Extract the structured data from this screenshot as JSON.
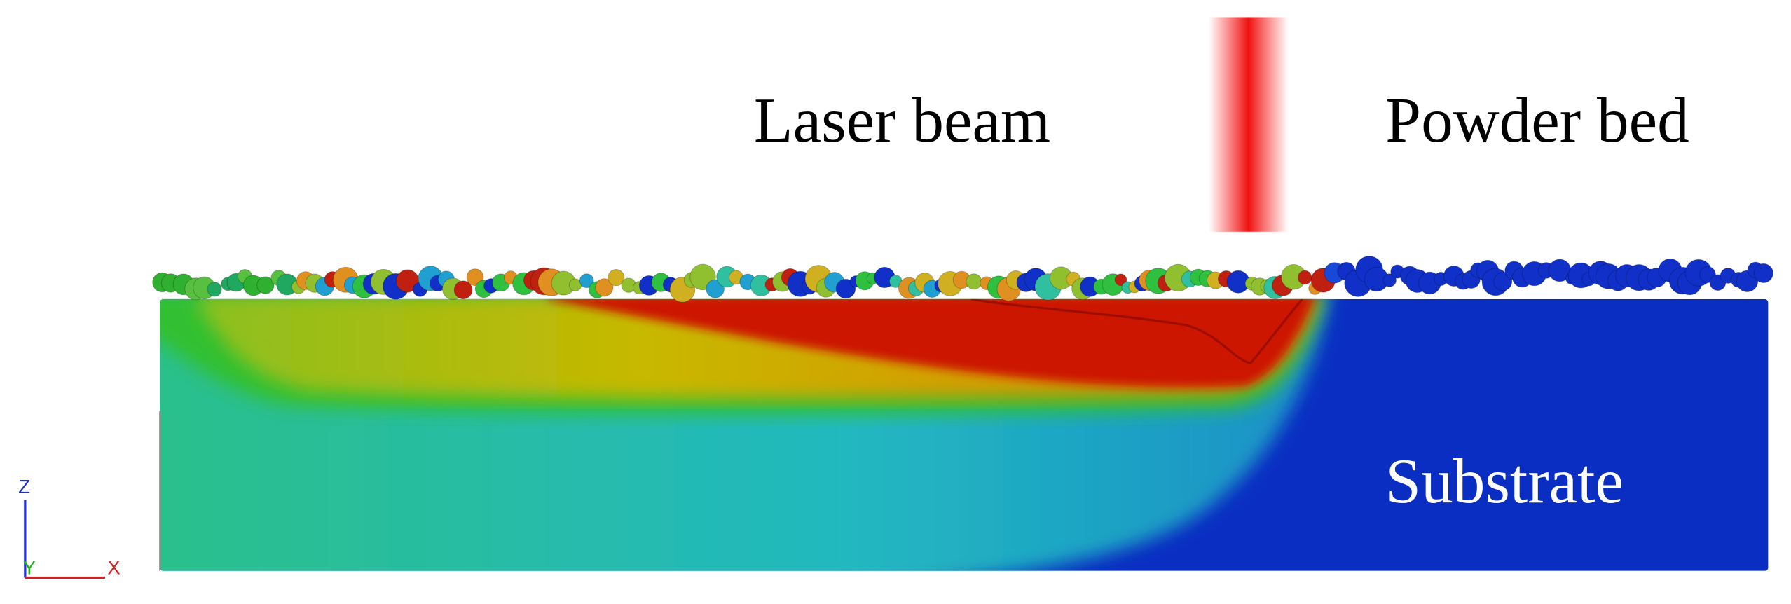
{
  "labels": {
    "laser_beam": "Laser beam",
    "powder_bed": "Powder bed",
    "substrate": "Substrate"
  },
  "axes": {
    "z": "Z",
    "y": "Y",
    "x": "X"
  }
}
